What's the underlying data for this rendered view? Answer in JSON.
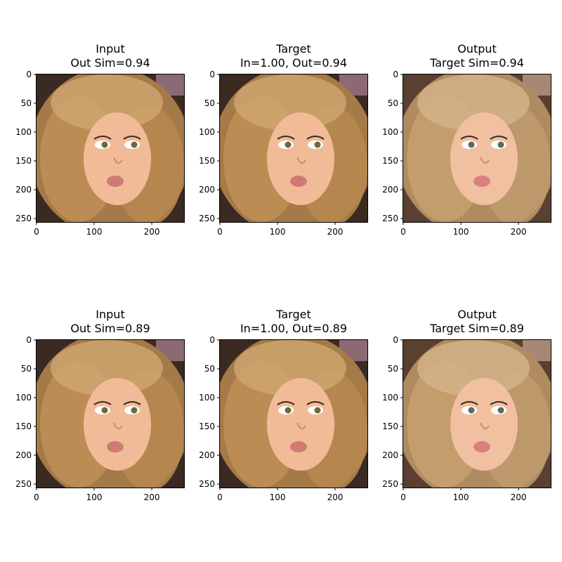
{
  "chart_data": [
    {
      "type": "image",
      "title": [
        "Input",
        "Out Sim=0.94"
      ],
      "xticks": [
        0,
        100,
        200
      ],
      "yticks": [
        0,
        50,
        100,
        150,
        200,
        250
      ],
      "xlim": [
        0,
        256
      ],
      "ylim": [
        256,
        0
      ],
      "image": "portrait-toddler"
    },
    {
      "type": "image",
      "title": [
        "Target",
        "In=1.00, Out=0.94"
      ],
      "xticks": [
        0,
        100,
        200
      ],
      "yticks": [
        0,
        50,
        100,
        150,
        200,
        250
      ],
      "xlim": [
        0,
        256
      ],
      "ylim": [
        256,
        0
      ],
      "image": "portrait-toddler"
    },
    {
      "type": "image",
      "title": [
        "Output",
        "Target Sim=0.94"
      ],
      "xticks": [
        0,
        100,
        200
      ],
      "yticks": [
        0,
        50,
        100,
        150,
        200,
        250
      ],
      "xlim": [
        0,
        256
      ],
      "ylim": [
        256,
        0
      ],
      "image": "portrait-toddler-generated"
    },
    {
      "type": "image",
      "title": [
        "Input",
        "Out Sim=0.89"
      ],
      "xticks": [
        0,
        100,
        200
      ],
      "yticks": [
        0,
        50,
        100,
        150,
        200,
        250
      ],
      "xlim": [
        0,
        256
      ],
      "ylim": [
        256,
        0
      ],
      "image": "portrait-woman"
    },
    {
      "type": "image",
      "title": [
        "Target",
        "In=1.00, Out=0.89"
      ],
      "xticks": [
        0,
        100,
        200
      ],
      "yticks": [
        0,
        50,
        100,
        150,
        200,
        250
      ],
      "xlim": [
        0,
        256
      ],
      "ylim": [
        256,
        0
      ],
      "image": "portrait-woman"
    },
    {
      "type": "image",
      "title": [
        "Output",
        "Target Sim=0.89"
      ],
      "xticks": [
        0,
        100,
        200
      ],
      "yticks": [
        0,
        50,
        100,
        150,
        200,
        250
      ],
      "xlim": [
        0,
        256
      ],
      "ylim": [
        256,
        0
      ],
      "image": "portrait-woman-generated"
    }
  ]
}
